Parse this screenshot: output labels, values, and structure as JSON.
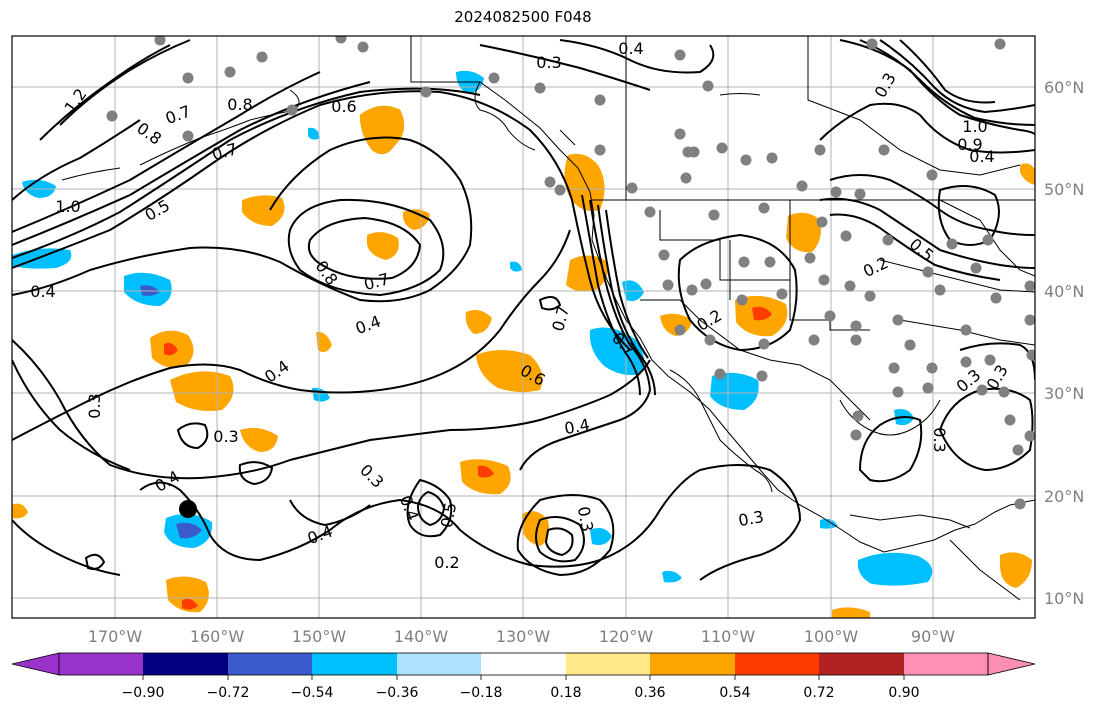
{
  "title": "2024082500 F048",
  "lon_labels": [
    "170°W",
    "160°W",
    "150°W",
    "140°W",
    "130°W",
    "120°W",
    "110°W",
    "100°W",
    "90°W"
  ],
  "lat_labels": [
    "60°N",
    "50°N",
    "40°N",
    "30°N",
    "20°N",
    "10°N"
  ],
  "colorbar": {
    "colors": [
      "#9933cc",
      "#000080",
      "#3b5bcc",
      "#00bfff",
      "#aee0ff",
      "#ffffff",
      "#ffeb8c",
      "#ffa500",
      "#ff3c00",
      "#b22222",
      "#ff8fb3"
    ],
    "tick_labels": [
      "−0.90",
      "−0.72",
      "−0.54",
      "−0.36",
      "−0.18",
      "0.18",
      "0.36",
      "0.54",
      "0.72",
      "0.90"
    ]
  },
  "contour_labels": [
    "0.4",
    "0.3",
    "1.2",
    "0.6",
    "0.7",
    "0.8",
    "0.8",
    "0.7",
    "1.0",
    "0.5",
    "0.8",
    "0.7",
    "0.4",
    "0.4",
    "0.4",
    "0.3",
    "0.3",
    "0.4",
    "0.4",
    "0.3",
    "0.5",
    "0.4",
    "0.2",
    "0.3",
    "0.6",
    "0.7",
    "0.4",
    "0.7",
    "0.2",
    "0.3",
    "1.0",
    "0.9",
    "0.4",
    "0.5",
    "0.2",
    "0.3",
    "0.3",
    "0.3",
    "0.3"
  ],
  "colors": {
    "contour": "#000000",
    "grid": "#b3b3b3",
    "axis_text": "#808080",
    "station": "#808080"
  }
}
